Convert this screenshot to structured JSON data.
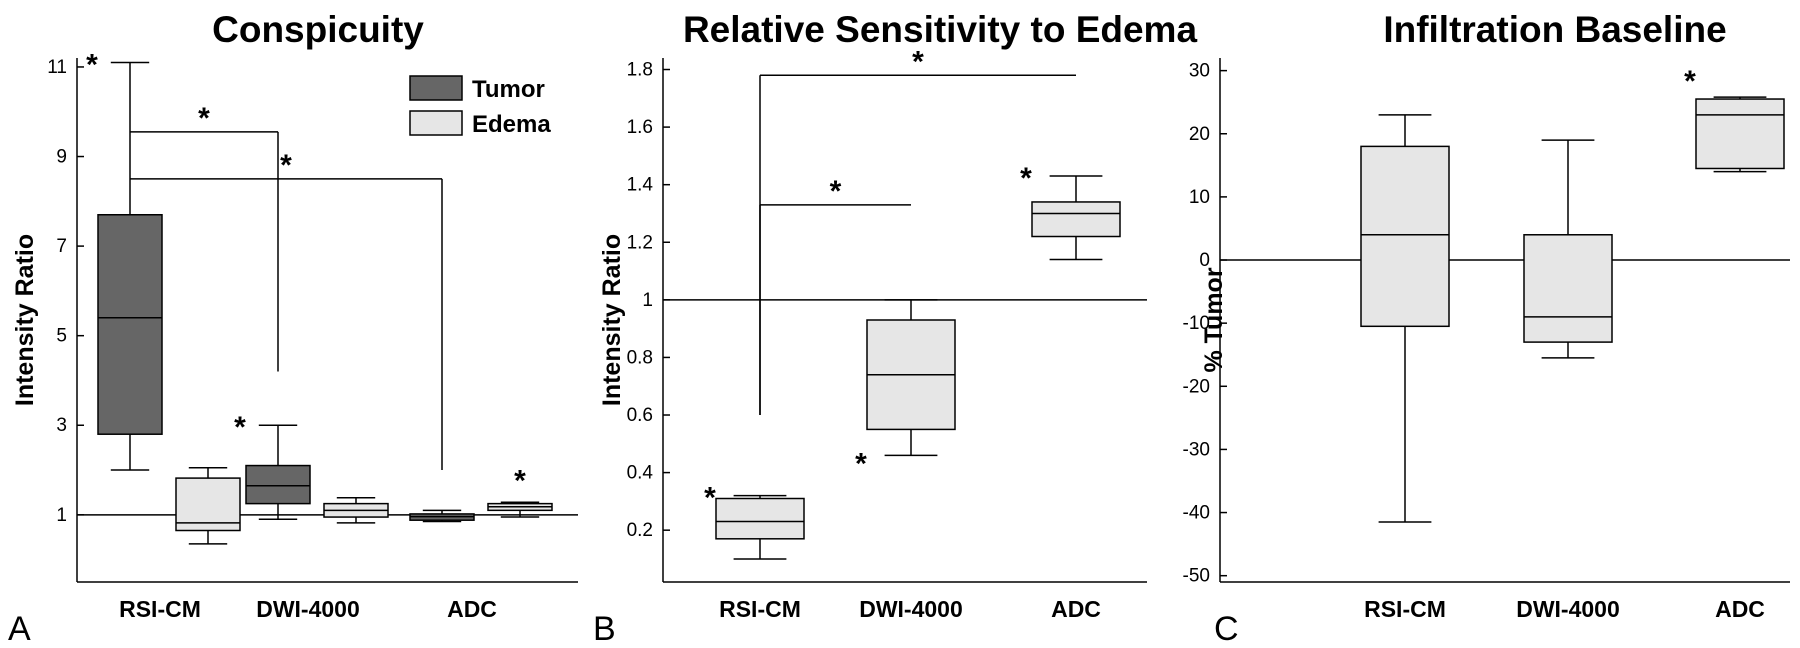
{
  "colors": {
    "tumor": "#666666",
    "edema": "#e6e6e6",
    "line": "#000000"
  },
  "chart_data": [
    {
      "type": "box",
      "panel_label": "A",
      "title": "Conspicuity",
      "ylabel": "Intensity Ratio",
      "ylim": [
        -0.5,
        11.2
      ],
      "yticks": [
        "1",
        "3",
        "5",
        "7",
        "9",
        "11"
      ],
      "ytick_values": [
        1,
        3,
        5,
        7,
        9,
        11
      ],
      "reference_line": 1,
      "categories": [
        "RSI-CM",
        "DWI-4000",
        "ADC"
      ],
      "legend": {
        "position": "top-right",
        "entries": [
          "Tumor",
          "Edema"
        ]
      },
      "series": [
        {
          "name": "Tumor",
          "color": "tumor",
          "boxes": [
            {
              "min": 2.0,
              "q1": 2.8,
              "median": 5.4,
              "q3": 7.7,
              "max": 11.1,
              "star": true
            },
            {
              "min": 0.9,
              "q1": 1.25,
              "median": 1.65,
              "q3": 2.1,
              "max": 3.0,
              "star": true
            },
            {
              "min": 0.85,
              "q1": 0.88,
              "median": 0.96,
              "q3": 1.02,
              "max": 1.1,
              "star": false
            }
          ]
        },
        {
          "name": "Edema",
          "color": "edema",
          "boxes": [
            {
              "min": 0.35,
              "q1": 0.65,
              "median": 0.82,
              "q3": 1.82,
              "max": 2.05,
              "star": false
            },
            {
              "min": 0.82,
              "q1": 0.95,
              "median": 1.1,
              "q3": 1.25,
              "max": 1.38,
              "star": false
            },
            {
              "min": 0.95,
              "q1": 1.1,
              "median": 1.18,
              "q3": 1.25,
              "max": 1.28,
              "star": true
            }
          ]
        }
      ],
      "brackets": [
        {
          "y": 9.55,
          "x_from": "RSI-CM:Tumor",
          "x_to": "DWI-4000:Tumor",
          "drop_to": 4.2,
          "label": "*"
        },
        {
          "y": 8.5,
          "x_from": "RSI-CM:Tumor",
          "x_to": "ADC:Tumor",
          "drop_to": 2.0,
          "label": "*"
        }
      ]
    },
    {
      "type": "box",
      "panel_label": "B",
      "title": "Relative Sensitivity to Edema",
      "ylabel": "Intensity Ratio",
      "ylim": [
        0.02,
        1.84
      ],
      "yticks": [
        "0.2",
        "0.4",
        "0.6",
        "0.8",
        "1",
        "1.2",
        "1.4",
        "1.6",
        "1.8"
      ],
      "ytick_values": [
        0.2,
        0.4,
        0.6,
        0.8,
        1.0,
        1.2,
        1.4,
        1.6,
        1.8
      ],
      "reference_line": 1.0,
      "categories": [
        "RSI-CM",
        "DWI-4000",
        "ADC"
      ],
      "series": [
        {
          "name": "",
          "color": "edema",
          "boxes": [
            {
              "min": 0.1,
              "q1": 0.17,
              "median": 0.23,
              "q3": 0.31,
              "max": 0.32,
              "star": true
            },
            {
              "min": 0.46,
              "q1": 0.55,
              "median": 0.74,
              "q3": 0.93,
              "max": 1.0,
              "star": true
            },
            {
              "min": 1.14,
              "q1": 1.22,
              "median": 1.3,
              "q3": 1.34,
              "max": 1.43,
              "star": true
            }
          ]
        }
      ],
      "brackets": [
        {
          "y": 1.78,
          "x_from": "RSI-CM",
          "x_to": "ADC",
          "drop_to": 0.6,
          "end_drop_to": 1.78,
          "label": "*"
        },
        {
          "y": 1.33,
          "x_from": "RSI-CM",
          "x_to": "DWI-4000",
          "drop_to": 0.6,
          "end_drop_to": 1.33,
          "label": "*"
        }
      ]
    },
    {
      "type": "box",
      "panel_label": "C",
      "title": "Infiltration Baseline",
      "ylabel": "% Tumor",
      "ylim": [
        -51,
        32
      ],
      "yticks": [
        "30",
        "20",
        "10",
        "0",
        "-10",
        "-20",
        "-30",
        "-40",
        "-50"
      ],
      "ytick_values": [
        30,
        20,
        10,
        0,
        -10,
        -20,
        -30,
        -40,
        -50
      ],
      "reference_line": 0,
      "categories": [
        "RSI-CM",
        "DWI-4000",
        "ADC"
      ],
      "series": [
        {
          "name": "",
          "color": "edema",
          "boxes": [
            {
              "min": -41.5,
              "q1": -10.5,
              "median": 4.0,
              "q3": 18.0,
              "max": 23.0,
              "star": false
            },
            {
              "min": -15.5,
              "q1": -13.0,
              "median": -9.0,
              "q3": 4.0,
              "max": 19.0,
              "star": false
            },
            {
              "min": 14.0,
              "q1": 14.5,
              "median": 23.0,
              "q3": 25.5,
              "max": 25.8,
              "star": true
            }
          ]
        }
      ],
      "brackets": []
    }
  ]
}
